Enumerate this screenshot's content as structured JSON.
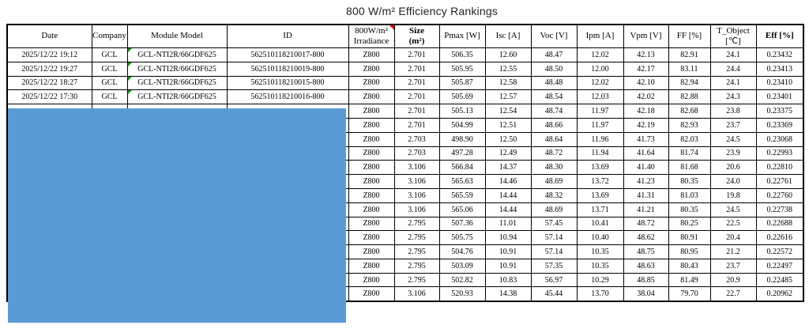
{
  "title": "800 W/m² Efficiency Rankings",
  "colors": {
    "redaction_blue": "#5B9BD5",
    "comment_red": "#FF0000",
    "flag_green": "#1E8F1E",
    "grid_black": "#000000"
  },
  "table": {
    "columns": [
      {
        "key": "date",
        "label": "Date"
      },
      {
        "key": "company",
        "label": "Company"
      },
      {
        "key": "model",
        "label": "Module Model"
      },
      {
        "key": "id",
        "label": "ID"
      },
      {
        "key": "irradiance",
        "label": "800W/m²\nIrradiance",
        "comment_marker": true
      },
      {
        "key": "size",
        "label": "Size\n(m²)",
        "bold": true
      },
      {
        "key": "pmax",
        "label": "Pmax [W]"
      },
      {
        "key": "isc",
        "label": "Isc [A]"
      },
      {
        "key": "voc",
        "label": "Voc [V]"
      },
      {
        "key": "ipm",
        "label": "Ipm [A]"
      },
      {
        "key": "vpm",
        "label": "Vpm [V]"
      },
      {
        "key": "ff",
        "label": "FF [%]"
      },
      {
        "key": "t_object",
        "label": "T_Object\n[℃]"
      },
      {
        "key": "eff",
        "label": "Eff [%]",
        "bold": true
      }
    ],
    "rows": [
      [
        "2025/12/22 19:12",
        "GCL",
        "GCL-NTI2R/66GDF625",
        "562510118210017-800",
        "Z800",
        "2.701",
        "506.35",
        "12.60",
        "48.47",
        "12.02",
        "42.13",
        "82.91",
        "24.1",
        "0.23432"
      ],
      [
        "2025/12/22 19:27",
        "GCL",
        "GCL-NTI2R/66GDF625",
        "562510118210019-800",
        "Z800",
        "2.701",
        "505.95",
        "12.55",
        "48.50",
        "12.00",
        "42.17",
        "83.11",
        "24.4",
        "0.23413"
      ],
      [
        "2025/12/22 18:27",
        "GCL",
        "GCL-NTI2R/66GDF625",
        "562510118210015-800",
        "Z800",
        "2.701",
        "505.87",
        "12.58",
        "48.48",
        "12.02",
        "42.10",
        "82.94",
        "24.1",
        "0.23410"
      ],
      [
        "2025/12/22 17:30",
        "GCL",
        "GCL-NTI2R/66GDF625",
        "562510118210016-800",
        "Z800",
        "2.701",
        "505.69",
        "12.57",
        "48.54",
        "12.03",
        "42.02",
        "82.88",
        "24.3",
        "0.23401"
      ],
      [
        "",
        "",
        "",
        "",
        "Z800",
        "2.701",
        "505.13",
        "12.54",
        "48.74",
        "11.97",
        "42.18",
        "82.68",
        "23.8",
        "0.23375"
      ],
      [
        "",
        "",
        "",
        "",
        "Z800",
        "2.701",
        "504.99",
        "12.51",
        "48.66",
        "11.97",
        "42.19",
        "82.93",
        "23.7",
        "0.23369"
      ],
      [
        "",
        "",
        "",
        "",
        "Z800",
        "2.703",
        "498.90",
        "12.50",
        "48.64",
        "11.96",
        "41.73",
        "82.03",
        "24.5",
        "0.23068"
      ],
      [
        "",
        "",
        "",
        "",
        "Z800",
        "2.703",
        "497.28",
        "12.49",
        "48.72",
        "11.94",
        "41.64",
        "81.74",
        "23.9",
        "0.22993"
      ],
      [
        "",
        "",
        "",
        "",
        "Z800",
        "3.106",
        "566.84",
        "14.37",
        "48.30",
        "13.69",
        "41.40",
        "81.68",
        "20.6",
        "0.22810"
      ],
      [
        "",
        "",
        "",
        "",
        "Z800",
        "3.106",
        "565.63",
        "14.46",
        "48.69",
        "13.72",
        "41.23",
        "80.35",
        "24.0",
        "0.22761"
      ],
      [
        "",
        "",
        "",
        "",
        "Z800",
        "3.106",
        "565.59",
        "14.44",
        "48.32",
        "13.69",
        "41.31",
        "81.03",
        "19.8",
        "0.22760"
      ],
      [
        "",
        "",
        "",
        "",
        "Z800",
        "3.106",
        "565.06",
        "14.44",
        "48.69",
        "13.71",
        "41.21",
        "80.35",
        "24.5",
        "0.22738"
      ],
      [
        "",
        "",
        "",
        "",
        "Z800",
        "2.795",
        "507.36",
        "11.01",
        "57.45",
        "10.41",
        "48.72",
        "80.25",
        "22.5",
        "0.22688"
      ],
      [
        "",
        "",
        "",
        "",
        "Z800",
        "2.795",
        "505.75",
        "10.94",
        "57.14",
        "10.40",
        "48.62",
        "80.91",
        "20.4",
        "0.22616"
      ],
      [
        "",
        "",
        "",
        "",
        "Z800",
        "2.795",
        "504.76",
        "10.91",
        "57.14",
        "10.35",
        "48.75",
        "80.95",
        "21.2",
        "0.22572"
      ],
      [
        "",
        "",
        "",
        "",
        "Z800",
        "2.795",
        "503.09",
        "10.91",
        "57.35",
        "10.35",
        "48.63",
        "80.43",
        "23.7",
        "0.22497"
      ],
      [
        "",
        "",
        "",
        "",
        "Z800",
        "2.795",
        "502.82",
        "10.83",
        "56.97",
        "10.29",
        "48.85",
        "81.49",
        "20.9",
        "0.22485"
      ],
      [
        "",
        "",
        "",
        "",
        "Z800",
        "3.106",
        "520.93",
        "14.38",
        "45.44",
        "13.70",
        "38.04",
        "79.70",
        "22.7",
        "0.20962"
      ]
    ]
  }
}
